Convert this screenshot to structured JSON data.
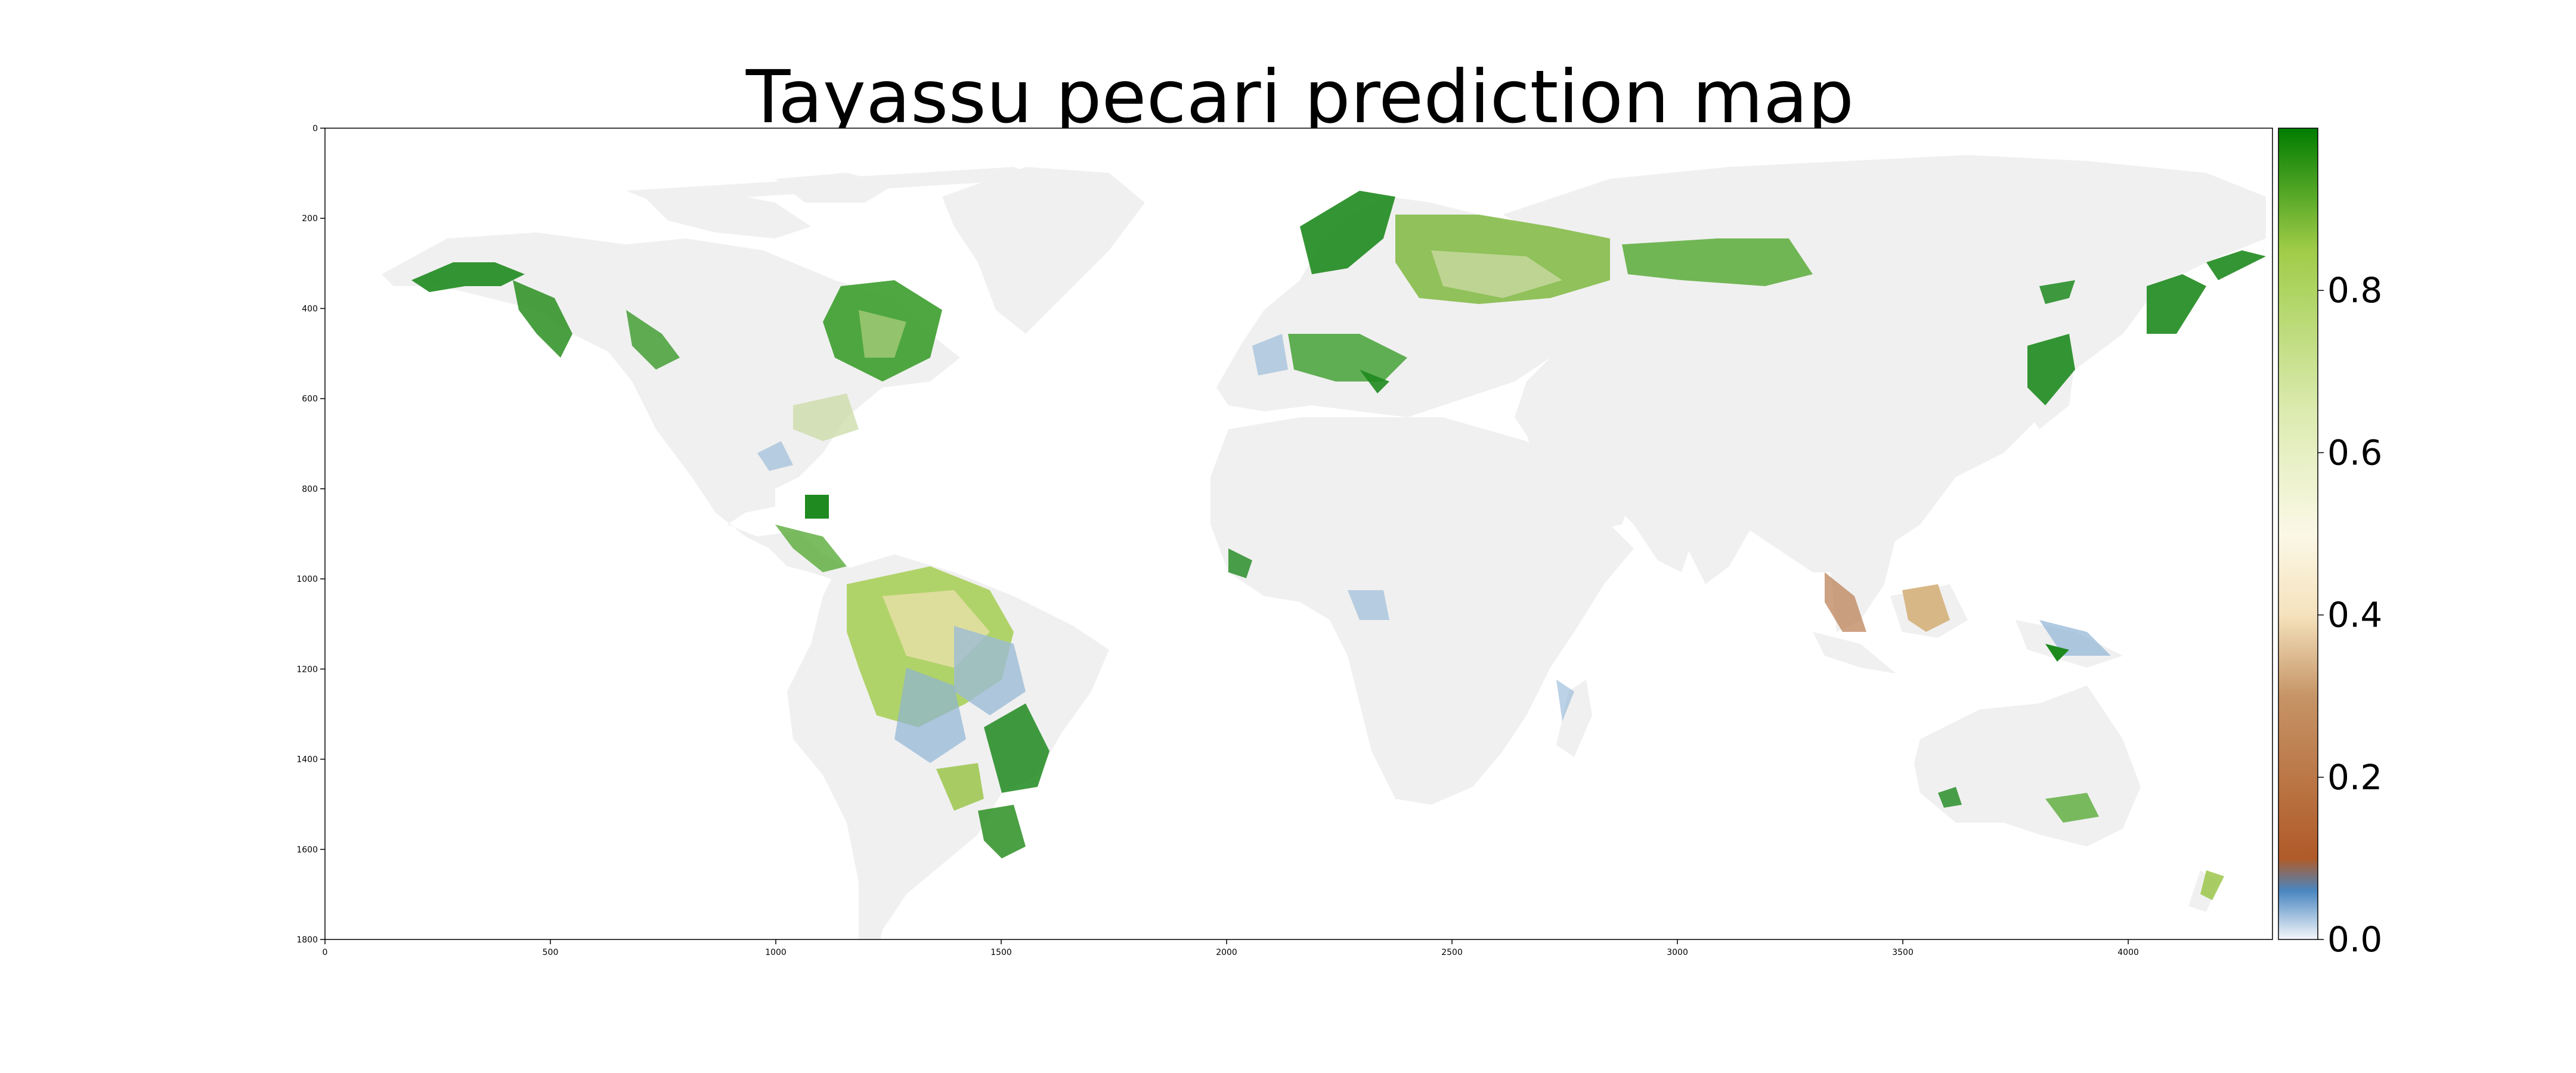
{
  "title": "Tayassu pecari prediction map",
  "map": {
    "x_ticks": [
      "0",
      "500",
      "1000",
      "1500",
      "2000",
      "2500",
      "3000",
      "3500",
      "4000"
    ],
    "y_ticks": [
      "0",
      "200",
      "400",
      "600",
      "800",
      "1000",
      "1200",
      "1400",
      "1600",
      "1800"
    ],
    "x_range": [
      0,
      4320
    ],
    "y_range": [
      0,
      1800
    ],
    "land_color": "#f0f0f0",
    "ocean_color": "#ffffff"
  },
  "colorbar": {
    "range": [
      0.0,
      1.0
    ],
    "ticks": [
      "0.0",
      "0.2",
      "0.4",
      "0.6",
      "0.8"
    ],
    "gradient_colors": [
      "#f4f7fb",
      "#4a86c0",
      "#b05a28",
      "#c69466",
      "#f5e2bd",
      "#fbf8e6",
      "#dcebb0",
      "#9fcc48",
      "#007c00"
    ]
  }
}
